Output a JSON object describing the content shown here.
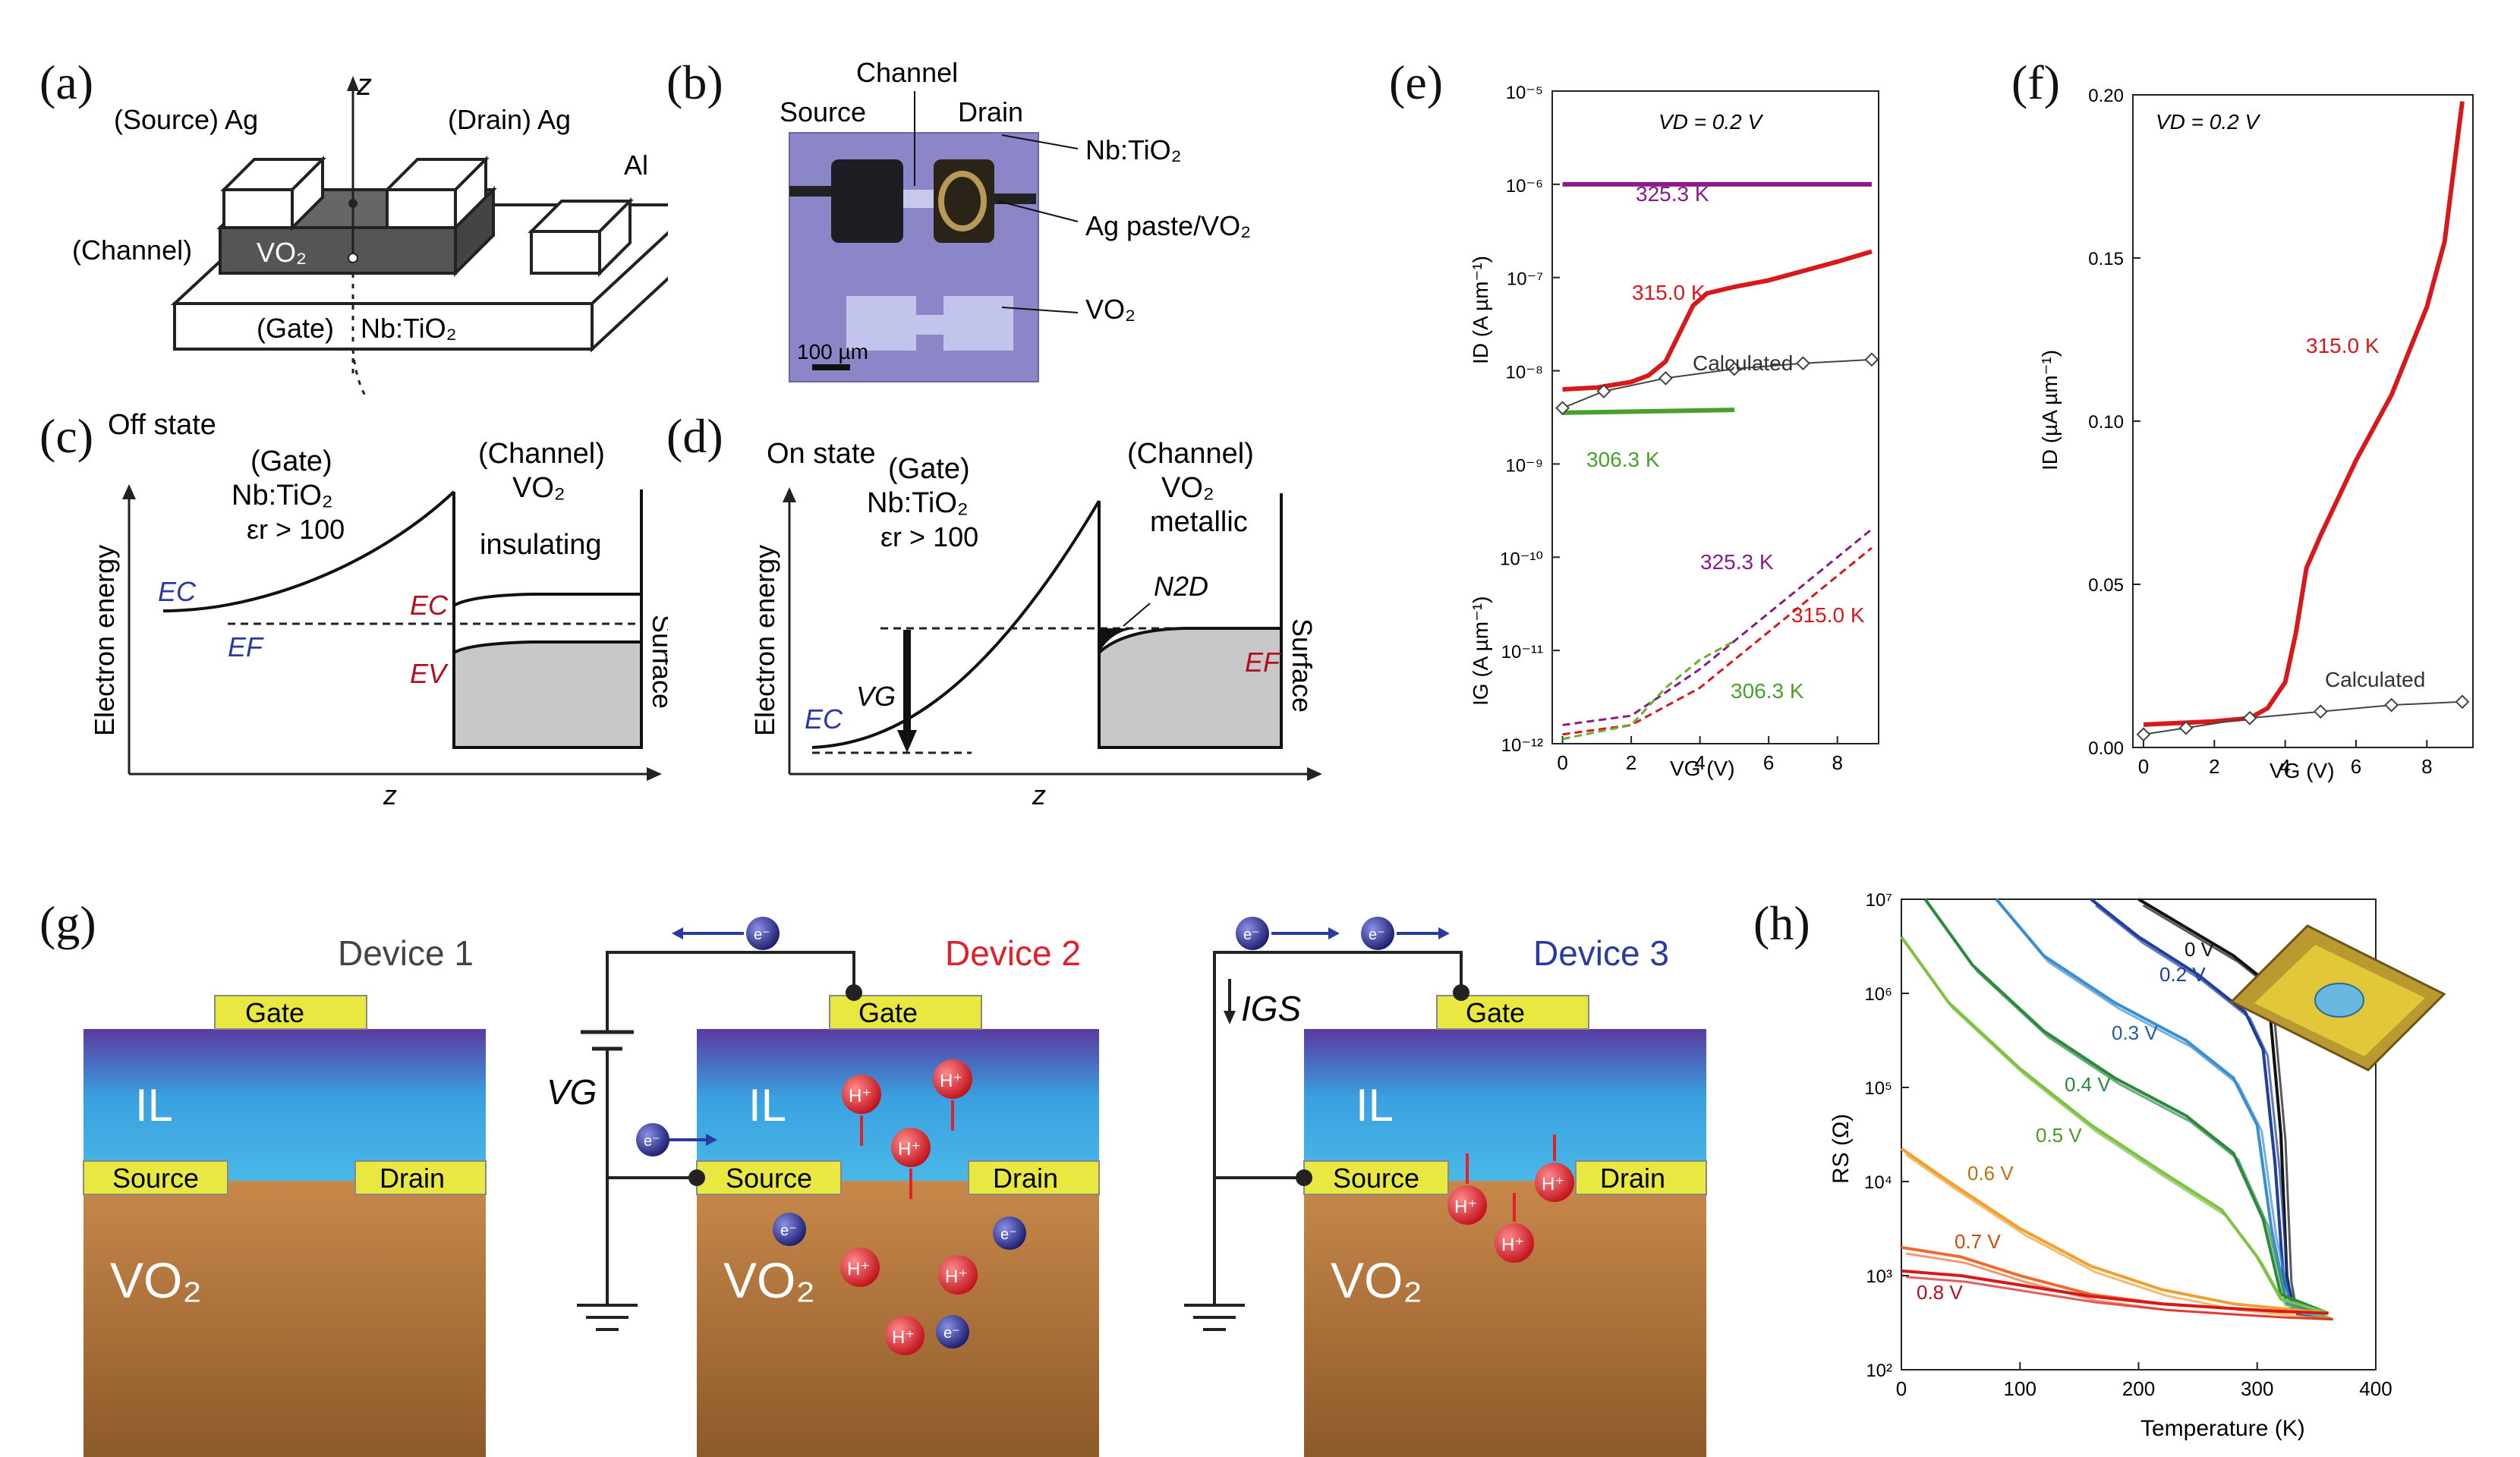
{
  "figure_labels": {
    "a": "(a)",
    "b": "(b)",
    "c": "(c)",
    "d": "(d)",
    "e": "(e)",
    "f": "(f)",
    "g": "(g)",
    "h": "(h)"
  },
  "panel_a": {
    "z_axis": "z",
    "source_label": "(Source) Ag",
    "drain_label": "(Drain) Ag",
    "al_label": "Al",
    "channel_label": "(Channel)",
    "channel_material": "VO₂",
    "gate_label": "(Gate)",
    "gate_material": "Nb:TiO₂"
  },
  "panel_b": {
    "channel": "Channel",
    "source": "Source",
    "drain": "Drain",
    "nbtio2": "Nb:TiO₂",
    "ag_paste": "Ag paste/VO₂",
    "vo2": "VO₂",
    "scalebar": "100 µm"
  },
  "panel_c": {
    "state": "Off state",
    "gate": "(Gate)",
    "gate_mat": "Nb:TiO₂",
    "eps": "εr > 100",
    "channel": "(Channel)",
    "channel_mat": "VO₂",
    "channel_state": "insulating",
    "surface": "Surface",
    "ylabel": "Electron energy",
    "xlabel": "z",
    "ec_left": "EC",
    "ef": "EF",
    "ec_right": "EC",
    "ev": "EV"
  },
  "panel_d": {
    "state": "On state",
    "gate": "(Gate)",
    "gate_mat": "Nb:TiO₂",
    "eps": "εr > 100",
    "channel": "(Channel)",
    "channel_mat": "VO₂",
    "channel_state": "metallic",
    "surface": "Surface",
    "ylabel": "Electron energy",
    "xlabel": "z",
    "vg": "VG",
    "ec": "EC",
    "ef": "EF",
    "n2d": "N2D"
  },
  "chart_data": [
    {
      "id": "e",
      "type": "line",
      "yscale": "log",
      "xlabel": "VG (V)",
      "ylabel_top": "ID (A µm⁻¹)",
      "ylabel_bottom": "IG (A µm⁻¹)",
      "xlim": [
        -0.3,
        9.2
      ],
      "ylim_exp": [
        -12,
        -5
      ],
      "x_ticks": [
        "0",
        "2",
        "4",
        "6",
        "8"
      ],
      "y_ticks": [
        "10⁻¹²",
        "10⁻¹¹",
        "10⁻¹⁰",
        "10⁻⁹",
        "10⁻⁸",
        "10⁻⁷",
        "10⁻⁶",
        "10⁻⁵"
      ],
      "annotation": "VD = 0.2 V",
      "series": [
        {
          "name": "325.3 K",
          "kind": "ID",
          "color": "#8b1a8b",
          "x": [
            0,
            9
          ],
          "log_y": [
            -6.0,
            -6.0
          ]
        },
        {
          "name": "315.0 K",
          "kind": "ID",
          "color": "#d7191c",
          "x": [
            0,
            1,
            2,
            2.5,
            3,
            3.4,
            3.8,
            4.2,
            5,
            6,
            7,
            8,
            9
          ],
          "log_y": [
            -8.2,
            -8.18,
            -8.12,
            -8.05,
            -7.9,
            -7.6,
            -7.3,
            -7.17,
            -7.1,
            -7.03,
            -6.93,
            -6.83,
            -6.72
          ]
        },
        {
          "name": "306.3 K",
          "kind": "ID",
          "color": "#4aa02c",
          "x": [
            0,
            5
          ],
          "log_y": [
            -8.45,
            -8.42
          ]
        },
        {
          "name": "Calculated",
          "kind": "ID",
          "color": "#444444",
          "x": [
            0,
            1.2,
            3,
            5,
            7,
            9
          ],
          "log_y": [
            -8.4,
            -8.22,
            -8.08,
            -7.98,
            -7.92,
            -7.88
          ]
        },
        {
          "name": "325.3 K",
          "kind": "IG",
          "color": "#8b1a8b",
          "x": [
            0,
            2,
            4,
            6,
            8,
            9
          ],
          "log_y": [
            -11.8,
            -11.7,
            -11.2,
            -10.6,
            -10.0,
            -9.7
          ]
        },
        {
          "name": "315.0 K",
          "kind": "IG",
          "color": "#d7191c",
          "x": [
            0,
            2,
            4,
            6,
            8,
            9
          ],
          "log_y": [
            -11.9,
            -11.8,
            -11.4,
            -10.8,
            -10.2,
            -9.9
          ]
        },
        {
          "name": "306.3 K",
          "kind": "IG",
          "color": "#6ab02c",
          "x": [
            0,
            2,
            3,
            4,
            5
          ],
          "log_y": [
            -11.95,
            -11.8,
            -11.4,
            -11.1,
            -10.9
          ]
        }
      ],
      "labels": {
        "l325": "325.3 K",
        "l315": "315.0 K",
        "l306": "306.3 K",
        "calc": "Calculated",
        "g325": "325.3 K",
        "g315": "315.0 K",
        "g306": "306.3 K"
      }
    },
    {
      "id": "f",
      "type": "line",
      "yscale": "linear",
      "xlabel": "VG (V)",
      "ylabel": "ID (µA µm⁻¹)",
      "xlim": [
        -0.3,
        9.3
      ],
      "ylim": [
        0,
        0.2
      ],
      "x_ticks": [
        "0",
        "2",
        "4",
        "6",
        "8"
      ],
      "y_ticks": [
        "0.00",
        "0.05",
        "0.10",
        "0.15",
        "0.20"
      ],
      "annotation": "VD = 0.2 V",
      "series": [
        {
          "name": "315.0 K",
          "color": "#d7191c",
          "x": [
            0,
            1,
            2,
            3,
            3.5,
            4,
            4.3,
            4.6,
            5,
            6,
            7,
            8,
            8.5,
            9
          ],
          "y": [
            0.007,
            0.0075,
            0.008,
            0.009,
            0.012,
            0.02,
            0.035,
            0.055,
            0.065,
            0.088,
            0.108,
            0.135,
            0.155,
            0.198
          ]
        },
        {
          "name": "Calculated",
          "color": "#444444",
          "x": [
            0,
            1.2,
            3,
            5,
            7,
            9
          ],
          "y": [
            0.004,
            0.006,
            0.009,
            0.011,
            0.013,
            0.014
          ]
        }
      ],
      "labels": {
        "l315": "315.0 K",
        "calc": "Calculated"
      }
    },
    {
      "id": "h",
      "type": "line",
      "yscale": "log",
      "xlabel": "Temperature (K)",
      "ylabel": "RS (Ω)",
      "xlim": [
        0,
        400
      ],
      "ylim_exp": [
        2,
        7
      ],
      "x_ticks": [
        "0",
        "100",
        "200",
        "300",
        "400"
      ],
      "y_ticks": [
        "10²",
        "10³",
        "10⁴",
        "10⁵",
        "10⁶",
        "10⁷"
      ],
      "series": [
        {
          "name": "0 V",
          "color": "#111111",
          "x": [
            200,
            240,
            280,
            300,
            310,
            320,
            325,
            330,
            360
          ],
          "log_y": [
            7.0,
            6.7,
            6.4,
            6.2,
            5.9,
            4.5,
            3.0,
            2.65,
            2.6
          ]
        },
        {
          "name": "0.2 V",
          "color": "#1f3f9a",
          "x": [
            160,
            200,
            250,
            290,
            305,
            315,
            322,
            330,
            360
          ],
          "log_y": [
            7.0,
            6.6,
            6.2,
            5.8,
            5.4,
            4.2,
            3.0,
            2.65,
            2.6
          ]
        },
        {
          "name": "0.3 V",
          "color": "#3a8fd0",
          "x": [
            80,
            120,
            180,
            240,
            280,
            300,
            312,
            325,
            360
          ],
          "log_y": [
            7.0,
            6.4,
            5.9,
            5.5,
            5.1,
            4.6,
            3.5,
            2.7,
            2.6
          ]
        },
        {
          "name": "0.4 V",
          "color": "#2b8a3e",
          "x": [
            20,
            60,
            120,
            180,
            240,
            280,
            305,
            320,
            360
          ],
          "log_y": [
            7.0,
            6.3,
            5.6,
            5.1,
            4.7,
            4.3,
            3.6,
            2.8,
            2.6
          ]
        },
        {
          "name": "0.5 V",
          "color": "#7cc243",
          "x": [
            0,
            40,
            100,
            160,
            220,
            270,
            300,
            320,
            360
          ],
          "log_y": [
            6.6,
            5.9,
            5.2,
            4.6,
            4.1,
            3.7,
            3.2,
            2.75,
            2.6
          ]
        },
        {
          "name": "0.6 V",
          "color": "#f0a030",
          "x": [
            0,
            40,
            100,
            160,
            220,
            280,
            320,
            360
          ],
          "log_y": [
            4.35,
            4.0,
            3.5,
            3.1,
            2.85,
            2.7,
            2.65,
            2.6
          ]
        },
        {
          "name": "0.7 V",
          "color": "#ee6b30",
          "x": [
            0,
            50,
            100,
            160,
            220,
            280,
            320,
            360
          ],
          "log_y": [
            3.3,
            3.2,
            3.0,
            2.8,
            2.7,
            2.65,
            2.62,
            2.6
          ]
        },
        {
          "name": "0.8 V",
          "color": "#d7191c",
          "x": [
            0,
            50,
            100,
            160,
            220,
            280,
            320,
            360
          ],
          "log_y": [
            3.05,
            3.0,
            2.9,
            2.78,
            2.7,
            2.65,
            2.62,
            2.6
          ]
        }
      ],
      "labels": {
        "v0": "0 V",
        "v02": "0.2 V",
        "v03": "0.3 V",
        "v04": "0.4 V",
        "v05": "0.5 V",
        "v06": "0.6 V",
        "v07": "0.7 V",
        "v08": "0.8 V"
      }
    }
  ],
  "panel_g": {
    "device1": "Device 1",
    "device2": "Device 2",
    "device3": "Device 3",
    "gate": "Gate",
    "il": "IL",
    "source": "Source",
    "drain": "Drain",
    "vo2": "VO₂",
    "vg": "VG",
    "igs": "IGS",
    "electron": "e⁻",
    "proton": "H⁺"
  }
}
